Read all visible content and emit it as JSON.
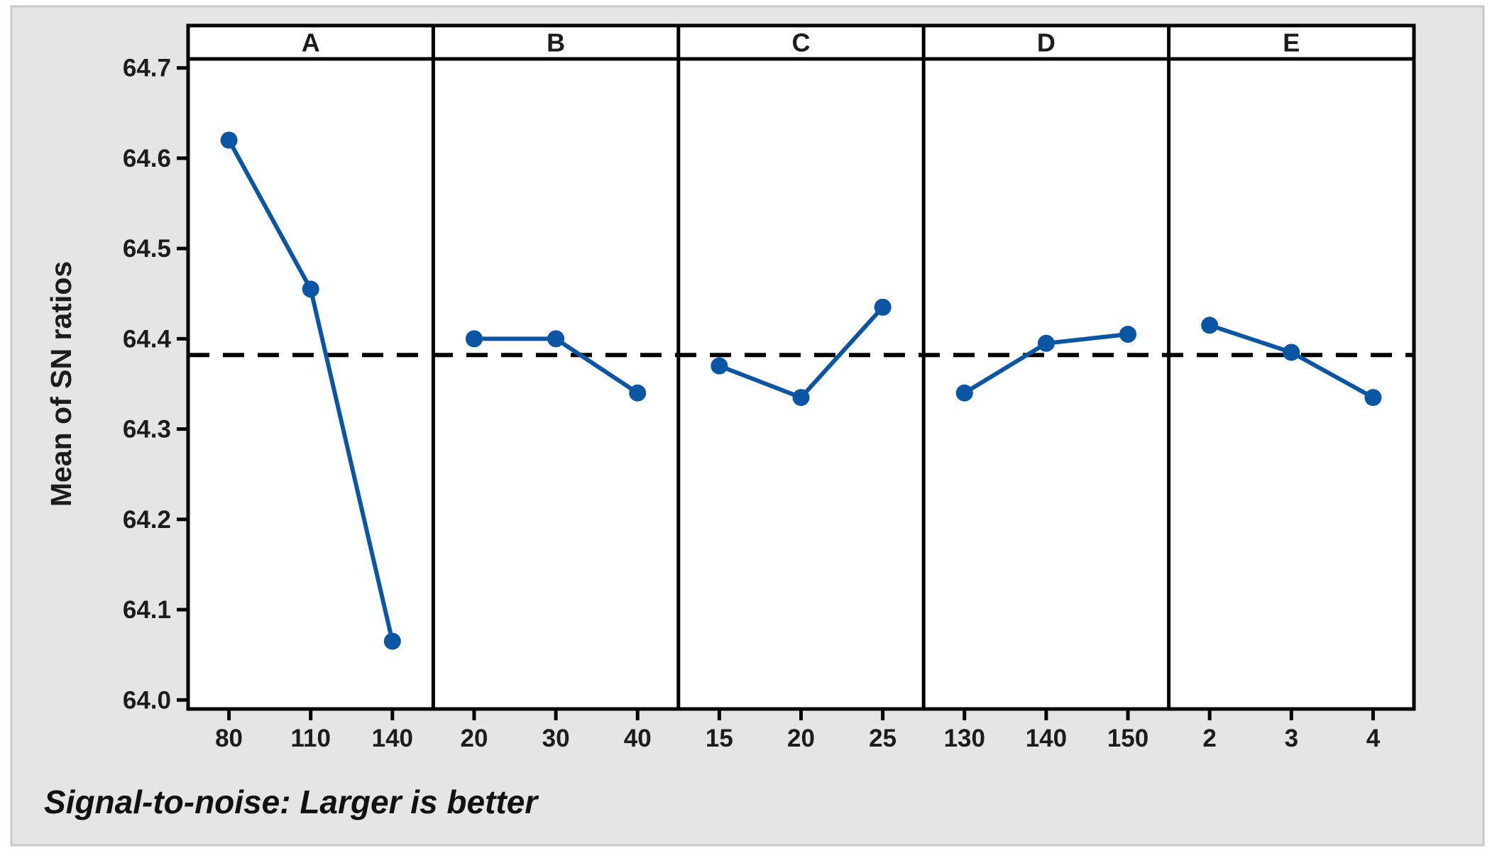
{
  "window": {
    "page_background": "#ffffff",
    "chart_background": "#e5e5e5",
    "chart_border": "#c9c9c9",
    "frame_color": "#000000",
    "text_color": "#1c1c1c"
  },
  "chart_data": {
    "type": "line",
    "title": "",
    "ylabel": "Mean of SN ratios",
    "footer": "Signal-to-noise: Larger is better",
    "ylim": [
      63.99,
      64.71
    ],
    "yticks": [
      64.0,
      64.1,
      64.2,
      64.3,
      64.4,
      64.5,
      64.6,
      64.7
    ],
    "ytick_labels": [
      "64.0",
      "64.1",
      "64.2",
      "64.3",
      "64.4",
      "64.5",
      "64.6",
      "64.7"
    ],
    "reference_line": {
      "value": 64.382,
      "style": "dashed",
      "color": "#000000"
    },
    "series_color": "#0b55a5",
    "grid": "off",
    "legend": "none",
    "panels": [
      {
        "label": "A",
        "categories": [
          "80",
          "110",
          "140"
        ],
        "values": [
          64.62,
          64.455,
          64.065
        ]
      },
      {
        "label": "B",
        "categories": [
          "20",
          "30",
          "40"
        ],
        "values": [
          64.4,
          64.4,
          64.34
        ]
      },
      {
        "label": "C",
        "categories": [
          "15",
          "20",
          "25"
        ],
        "values": [
          64.37,
          64.335,
          64.435
        ]
      },
      {
        "label": "D",
        "categories": [
          "130",
          "140",
          "150"
        ],
        "values": [
          64.34,
          64.395,
          64.405
        ]
      },
      {
        "label": "E",
        "categories": [
          "2",
          "3",
          "4"
        ],
        "values": [
          64.415,
          64.385,
          64.335
        ]
      }
    ]
  }
}
